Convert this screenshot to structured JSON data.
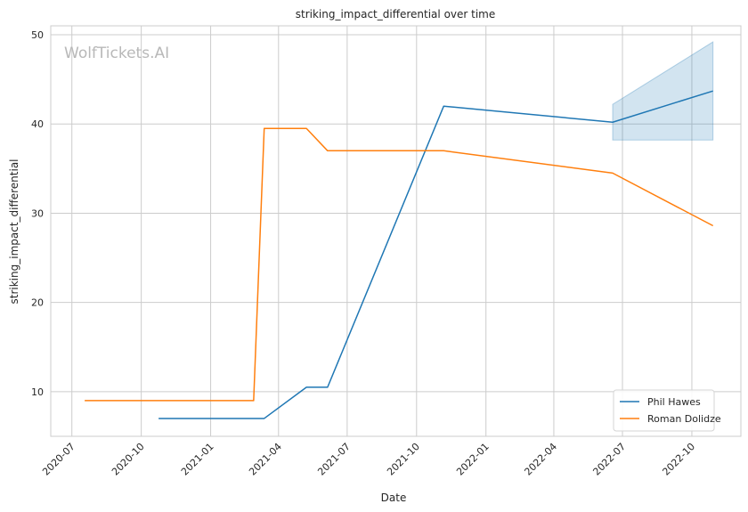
{
  "chart_data": {
    "type": "line",
    "title": "striking_impact_differential over time",
    "xlabel": "Date",
    "ylabel": "striking_impact_differential",
    "watermark": "WolfTickets.AI",
    "grid": true,
    "legend_position": "bottom-right",
    "xlim": [
      "2020-06-03",
      "2022-12-05"
    ],
    "ylim": [
      5,
      51
    ],
    "x_ticks": [
      "2020-07-01",
      "2020-10-01",
      "2021-01-01",
      "2021-04-01",
      "2021-07-01",
      "2021-10-01",
      "2022-01-01",
      "2022-04-01",
      "2022-07-01",
      "2022-10-01"
    ],
    "x_tick_labels": [
      "2020-07",
      "2020-10",
      "2021-01",
      "2021-04",
      "2021-07",
      "2021-10",
      "2022-01",
      "2022-04",
      "2022-07",
      "2022-10"
    ],
    "y_ticks": [
      10,
      20,
      30,
      40,
      50
    ],
    "series": [
      {
        "name": "Phil Hawes",
        "color": "#1f77b4",
        "x": [
          "2020-10-24",
          "2021-03-13",
          "2021-05-08",
          "2021-06-05",
          "2021-11-06",
          "2022-06-18",
          "2022-10-29"
        ],
        "y": [
          7.0,
          7.0,
          10.5,
          10.5,
          42.0,
          40.2,
          43.7
        ],
        "band": {
          "x": [
            "2022-06-18",
            "2022-10-29"
          ],
          "lower": [
            38.2,
            38.2
          ],
          "upper": [
            42.2,
            49.2
          ]
        }
      },
      {
        "name": "Roman Dolidze",
        "color": "#ff7f0e",
        "x": [
          "2020-07-18",
          "2021-02-27",
          "2021-03-13",
          "2021-05-08",
          "2021-06-05",
          "2021-11-06",
          "2022-06-18",
          "2022-10-29"
        ],
        "y": [
          9.0,
          9.0,
          39.5,
          39.5,
          37.0,
          37.0,
          34.5,
          28.6
        ]
      }
    ]
  }
}
